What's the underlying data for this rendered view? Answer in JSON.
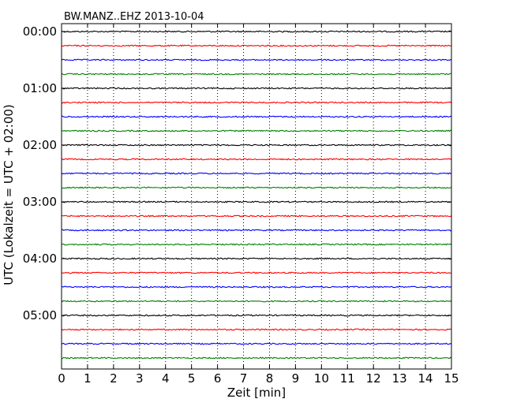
{
  "chart_data": {
    "type": "line",
    "title": "BW.MANZ..EHZ 2013-10-04",
    "xlabel": "Zeit  [min]",
    "ylabel": "UTC (Lokalzeit = UTC + 02:00)",
    "xlim": [
      0,
      15
    ],
    "x_ticks": [
      "0",
      "1",
      "2",
      "3",
      "4",
      "5",
      "6",
      "7",
      "8",
      "9",
      "10",
      "11",
      "12",
      "13",
      "14",
      "15"
    ],
    "y_tick_labels": [
      "00:00",
      "01:00",
      "02:00",
      "03:00",
      "04:00",
      "05:00"
    ],
    "traces_per_hour": 4,
    "trace_colors": [
      "#000000",
      "#ff0000",
      "#0000ff",
      "#008000"
    ],
    "series": [
      {
        "start": "00:00",
        "values": [
          0,
          0,
          0,
          0,
          0,
          0,
          0,
          0,
          0,
          0,
          0,
          0,
          0,
          0,
          0,
          0
        ]
      },
      {
        "start": "00:15",
        "values": [
          0,
          0,
          0,
          0,
          0,
          0,
          0,
          0,
          0,
          0,
          0,
          0,
          0,
          0,
          0,
          0
        ]
      },
      {
        "start": "00:30",
        "values": [
          0,
          0,
          0,
          0,
          0,
          0,
          0,
          0,
          0,
          0,
          0,
          0,
          0,
          0,
          0,
          0
        ]
      },
      {
        "start": "00:45",
        "values": [
          0,
          0,
          0,
          0,
          0,
          0,
          0,
          0,
          0,
          0,
          0,
          0,
          0,
          0,
          0,
          0
        ]
      },
      {
        "start": "01:00",
        "values": [
          0,
          0,
          0,
          0,
          0,
          0,
          0,
          0,
          0,
          0,
          0,
          0,
          0,
          0,
          0,
          0
        ]
      },
      {
        "start": "01:15",
        "values": [
          0,
          0,
          0,
          0,
          0,
          0,
          0,
          0,
          0,
          0,
          0,
          0,
          0,
          0,
          0,
          0
        ]
      },
      {
        "start": "01:30",
        "values": [
          0,
          0,
          0,
          0,
          0,
          0,
          0,
          0,
          0,
          0,
          0,
          0,
          0,
          0,
          0,
          0
        ]
      },
      {
        "start": "01:45",
        "values": [
          0,
          0,
          0,
          0,
          0,
          0,
          0,
          0,
          0,
          0,
          0,
          0,
          0,
          0,
          0,
          0
        ]
      },
      {
        "start": "02:00",
        "values": [
          0,
          0,
          0,
          0,
          0,
          0,
          0,
          0,
          0,
          0,
          0,
          0,
          0,
          0,
          0,
          0
        ]
      },
      {
        "start": "02:15",
        "values": [
          0,
          0,
          0,
          0,
          0,
          0,
          0,
          0,
          0,
          0,
          0,
          0,
          0,
          0,
          0,
          0
        ]
      },
      {
        "start": "02:30",
        "values": [
          0,
          0,
          0,
          0,
          0,
          0,
          0,
          0,
          0,
          0,
          0,
          0,
          0,
          0,
          0,
          0
        ]
      },
      {
        "start": "02:45",
        "values": [
          0,
          0,
          0,
          0,
          0,
          0,
          0,
          0,
          0,
          0,
          0,
          0,
          0,
          0,
          0,
          0
        ]
      },
      {
        "start": "03:00",
        "values": [
          0,
          0,
          0,
          0,
          0,
          0,
          0,
          0,
          0,
          0,
          0,
          0,
          0,
          0,
          0,
          0
        ]
      },
      {
        "start": "03:15",
        "values": [
          0,
          0,
          0,
          0,
          0,
          0,
          0,
          0,
          0,
          0,
          0,
          0,
          0,
          0,
          0,
          0
        ]
      },
      {
        "start": "03:30",
        "values": [
          0,
          0,
          0,
          0,
          0,
          0,
          0,
          0,
          0,
          0,
          0,
          0,
          0,
          0,
          0,
          0
        ]
      },
      {
        "start": "03:45",
        "values": [
          0,
          0,
          0,
          0,
          0,
          0,
          0,
          0,
          0,
          0,
          0,
          0,
          0,
          0,
          0,
          0
        ]
      },
      {
        "start": "04:00",
        "values": [
          0,
          0,
          0,
          0,
          0,
          0,
          0,
          0,
          0,
          0,
          0,
          0,
          0,
          0,
          0,
          0
        ]
      },
      {
        "start": "04:15",
        "values": [
          0,
          0,
          0,
          0,
          0,
          0,
          0,
          0,
          0,
          0,
          0,
          0,
          0,
          0,
          0,
          0
        ]
      },
      {
        "start": "04:30",
        "values": [
          0,
          0,
          0,
          0,
          0,
          0,
          0,
          0,
          0,
          0,
          0,
          0,
          0,
          0,
          0,
          0
        ]
      },
      {
        "start": "04:45",
        "values": [
          0,
          0,
          0,
          0,
          0,
          0,
          0,
          0,
          0,
          0,
          0,
          0,
          0,
          0,
          0,
          0
        ]
      },
      {
        "start": "05:00",
        "values": [
          0,
          0,
          0,
          0,
          0,
          0,
          0,
          0,
          0,
          0,
          0,
          0,
          0,
          0,
          0,
          0
        ]
      },
      {
        "start": "05:15",
        "values": [
          0,
          0,
          0,
          0,
          0,
          0,
          0,
          0,
          0,
          0,
          0,
          0,
          0,
          0,
          0,
          0
        ]
      },
      {
        "start": "05:30",
        "values": [
          0,
          0,
          0,
          0,
          0,
          0,
          0,
          0,
          0,
          0,
          0,
          0,
          0,
          0,
          0,
          0
        ]
      },
      {
        "start": "05:45",
        "values": [
          0,
          0,
          0,
          0,
          0,
          0,
          0,
          0,
          0,
          0,
          0,
          0,
          0,
          0,
          0,
          0
        ]
      }
    ],
    "grid": "vertical-dotted",
    "legend": "none"
  }
}
